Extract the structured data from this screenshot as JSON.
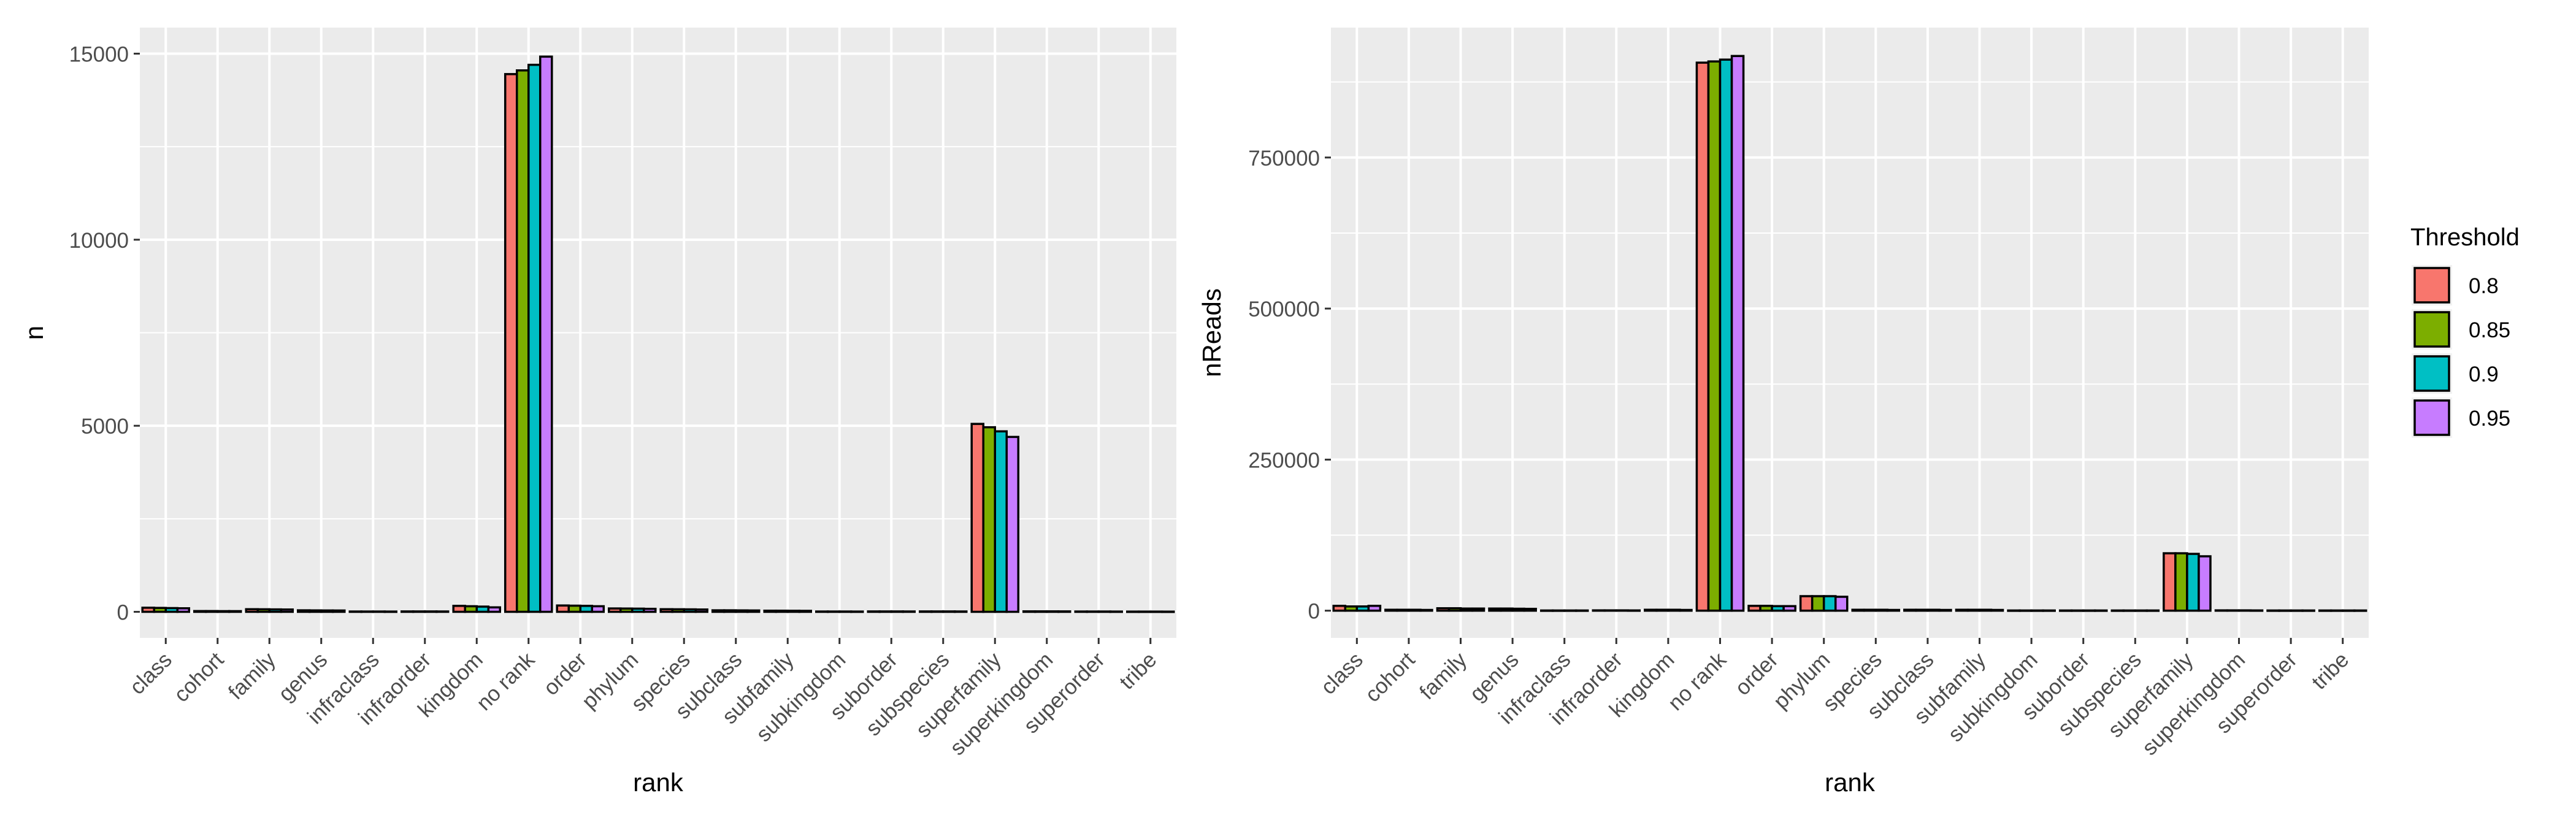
{
  "chart_data": [
    {
      "type": "bar",
      "title": "",
      "xlabel": "rank",
      "ylabel": "n",
      "categories": [
        "class",
        "cohort",
        "family",
        "genus",
        "infraclass",
        "infraorder",
        "kingdom",
        "no rank",
        "order",
        "phylum",
        "species",
        "subclass",
        "subfamily",
        "subkingdom",
        "suborder",
        "subspecies",
        "superfamily",
        "superkingdom",
        "superorder",
        "tribe"
      ],
      "ylim": [
        -700,
        15700
      ],
      "yticks": [
        0,
        5000,
        10000,
        15000
      ],
      "ytick_labels": [
        "0",
        "5000",
        "10000",
        "15000"
      ],
      "grid": true,
      "series": [
        {
          "name": "0.8",
          "values": [
            110,
            20,
            70,
            40,
            8,
            10,
            160,
            14450,
            170,
            90,
            70,
            40,
            30,
            8,
            10,
            10,
            5050,
            12,
            8,
            6
          ]
        },
        {
          "name": "0.85",
          "values": [
            105,
            20,
            68,
            38,
            8,
            10,
            150,
            14550,
            165,
            88,
            68,
            40,
            30,
            8,
            10,
            10,
            4960,
            12,
            8,
            6
          ]
        },
        {
          "name": "0.9",
          "values": [
            100,
            18,
            65,
            36,
            8,
            10,
            140,
            14700,
            160,
            85,
            66,
            38,
            28,
            8,
            10,
            10,
            4850,
            12,
            8,
            6
          ]
        },
        {
          "name": "0.95",
          "values": [
            95,
            18,
            62,
            35,
            7,
            9,
            120,
            14920,
            150,
            80,
            62,
            36,
            26,
            7,
            9,
            9,
            4700,
            11,
            7,
            5
          ]
        }
      ]
    },
    {
      "type": "bar",
      "title": "",
      "xlabel": "rank",
      "ylabel": "nReads",
      "categories": [
        "class",
        "cohort",
        "family",
        "genus",
        "infraclass",
        "infraorder",
        "kingdom",
        "no rank",
        "order",
        "phylum",
        "species",
        "subclass",
        "subfamily",
        "subkingdom",
        "suborder",
        "subspecies",
        "superfamily",
        "superkingdom",
        "superorder",
        "tribe"
      ],
      "ylim": [
        -45000,
        965000
      ],
      "yticks": [
        0,
        250000,
        500000,
        750000
      ],
      "ytick_labels": [
        "0",
        "250000",
        "500000",
        "750000"
      ],
      "grid": true,
      "series": [
        {
          "name": "0.8",
          "values": [
            8000,
            1500,
            4000,
            3500,
            300,
            500,
            1500,
            907000,
            8000,
            24000,
            1500,
            1500,
            1500,
            300,
            300,
            300,
            95000,
            500,
            300,
            300
          ]
        },
        {
          "name": "0.85",
          "values": [
            7000,
            1500,
            4000,
            3500,
            300,
            500,
            1500,
            909000,
            8000,
            24000,
            1500,
            1500,
            1500,
            300,
            300,
            300,
            95000,
            500,
            300,
            300
          ]
        },
        {
          "name": "0.9",
          "values": [
            7000,
            1500,
            3500,
            3200,
            300,
            500,
            1500,
            912000,
            7500,
            24000,
            1500,
            1500,
            1500,
            300,
            300,
            300,
            94000,
            500,
            300,
            300
          ]
        },
        {
          "name": "0.95",
          "values": [
            8000,
            1200,
            3500,
            3000,
            300,
            400,
            1200,
            918000,
            7500,
            23000,
            1200,
            1200,
            1200,
            300,
            300,
            300,
            90000,
            400,
            300,
            300
          ]
        }
      ]
    }
  ],
  "legend": {
    "title": "Threshold",
    "placement": "right",
    "items": [
      {
        "label": "0.8",
        "color": "#F8766D"
      },
      {
        "label": "0.85",
        "color": "#7CAE00"
      },
      {
        "label": "0.9",
        "color": "#00BFC4"
      },
      {
        "label": "0.95",
        "color": "#C77CFF"
      }
    ]
  },
  "colors": {
    "panel_background": "#EBEBEB",
    "grid_major": "#FFFFFF",
    "bar_outline": "#000000",
    "text": "#4D4D4D",
    "title_text": "#000000"
  }
}
